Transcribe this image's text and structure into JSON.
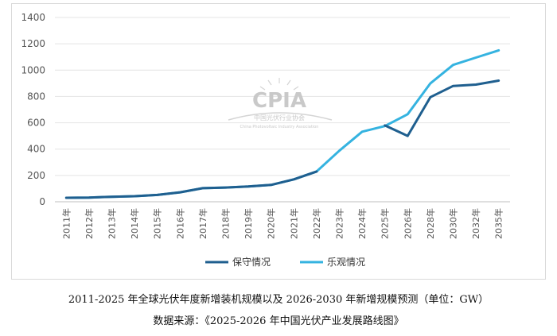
{
  "colors": {
    "conservative": "#1f5f8f",
    "optimistic": "#35b3e0",
    "grid": "#e4e4e4",
    "axis": "#bfbfbf"
  },
  "watermark": {
    "logo_text": "CPIA",
    "org_name": "中国光伏行业协会",
    "org_name_en": "China Photovoltaic Industry Association"
  },
  "chart_data": {
    "type": "line",
    "categories": [
      "2011年",
      "2012年",
      "2013年",
      "2014年",
      "2015年",
      "2016年",
      "2017年",
      "2018年",
      "2019年",
      "2020年",
      "2021年",
      "2022年",
      "2023年",
      "2024年",
      "2025年",
      "2026年",
      "2028年",
      "2030年",
      "2032年",
      "2035年"
    ],
    "ylim": [
      0,
      1400
    ],
    "yticks": [
      0,
      200,
      400,
      600,
      800,
      1000,
      1200,
      1400
    ],
    "grid": true,
    "legend": "bottom",
    "series": [
      {
        "name": "保守情况",
        "color": "#1f5f8f",
        "values": [
          30,
          32,
          38,
          42,
          52,
          72,
          103,
          108,
          116,
          128,
          170,
          230,
          null,
          null,
          580,
          500,
          795,
          880,
          890,
          920
        ]
      },
      {
        "name": "乐观情况",
        "color": "#35b3e0",
        "values": [
          30,
          32,
          38,
          42,
          52,
          72,
          103,
          108,
          116,
          128,
          170,
          230,
          388,
          532,
          575,
          665,
          900,
          1040,
          1095,
          1150
        ]
      }
    ]
  },
  "captions": {
    "line1": "2011-2025 年全球光伏年度新增装机规模以及 2026-2030 年新增规模预测（单位：GW）",
    "line2": "数据来源：《2025-2026 年中国光伏产业发展路线图》"
  }
}
